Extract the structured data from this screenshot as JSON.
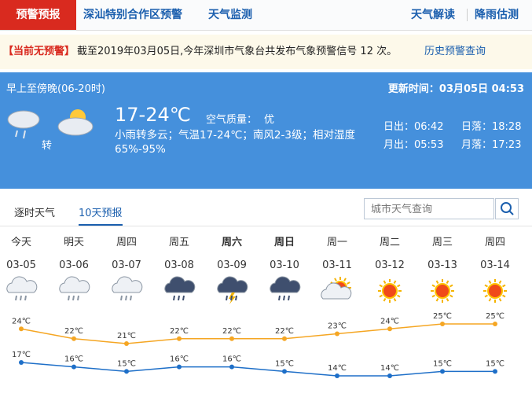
{
  "nav": {
    "active": "预警预报",
    "links": [
      "深汕特别合作区预警",
      "天气监测"
    ],
    "right_links": [
      "天气解读",
      "降雨估测"
    ]
  },
  "warning": {
    "status": "【当前无预警】",
    "text": "截至2019年03月05日,今年深圳市气象台共发布气象预警信号 12 次。",
    "link": "历史预警查询"
  },
  "today": {
    "period": "早上至傍晚(06-20时)",
    "updated": "更新时间：03月05日 04:53",
    "transition": "转",
    "temperature": "17-24℃",
    "air_quality_label": "空气质量：",
    "air_quality": "优",
    "description": "小雨转多云；气温17-24℃；南风2-3级；相对湿度65%-95%",
    "sun_moon": [
      [
        "日出：06:42",
        "日落：18:28"
      ],
      [
        "月出：05:53",
        "月落：17:23"
      ]
    ]
  },
  "forecast": {
    "tabs": [
      "逐时天气",
      "10天预报"
    ],
    "search_placeholder": "城市天气查询",
    "days": [
      "今天",
      "明天",
      "周四",
      "周五",
      "周六",
      "周日",
      "周一",
      "周二",
      "周三",
      "周四"
    ],
    "dates": [
      "03-05",
      "03-06",
      "03-07",
      "03-08",
      "03-09",
      "03-10",
      "03-11",
      "03-12",
      "03-13",
      "03-14"
    ],
    "high": {
      "color": "#f5a623",
      "values": [
        24,
        22,
        21,
        22,
        22,
        22,
        23,
        24,
        25,
        25
      ],
      "value_labels": [
        "24℃",
        "22℃",
        "21℃",
        "22℃",
        "22℃",
        "22℃",
        "23℃",
        "24℃",
        "25℃",
        "25℃"
      ]
    },
    "low": {
      "color": "#1e6fc8",
      "values": [
        17,
        16,
        15,
        16,
        16,
        15,
        14,
        14,
        15,
        15
      ],
      "value_labels": [
        "17℃",
        "16℃",
        "15℃",
        "16℃",
        "16℃",
        "15℃",
        "14℃",
        "14℃",
        "15℃",
        "15℃"
      ]
    }
  }
}
